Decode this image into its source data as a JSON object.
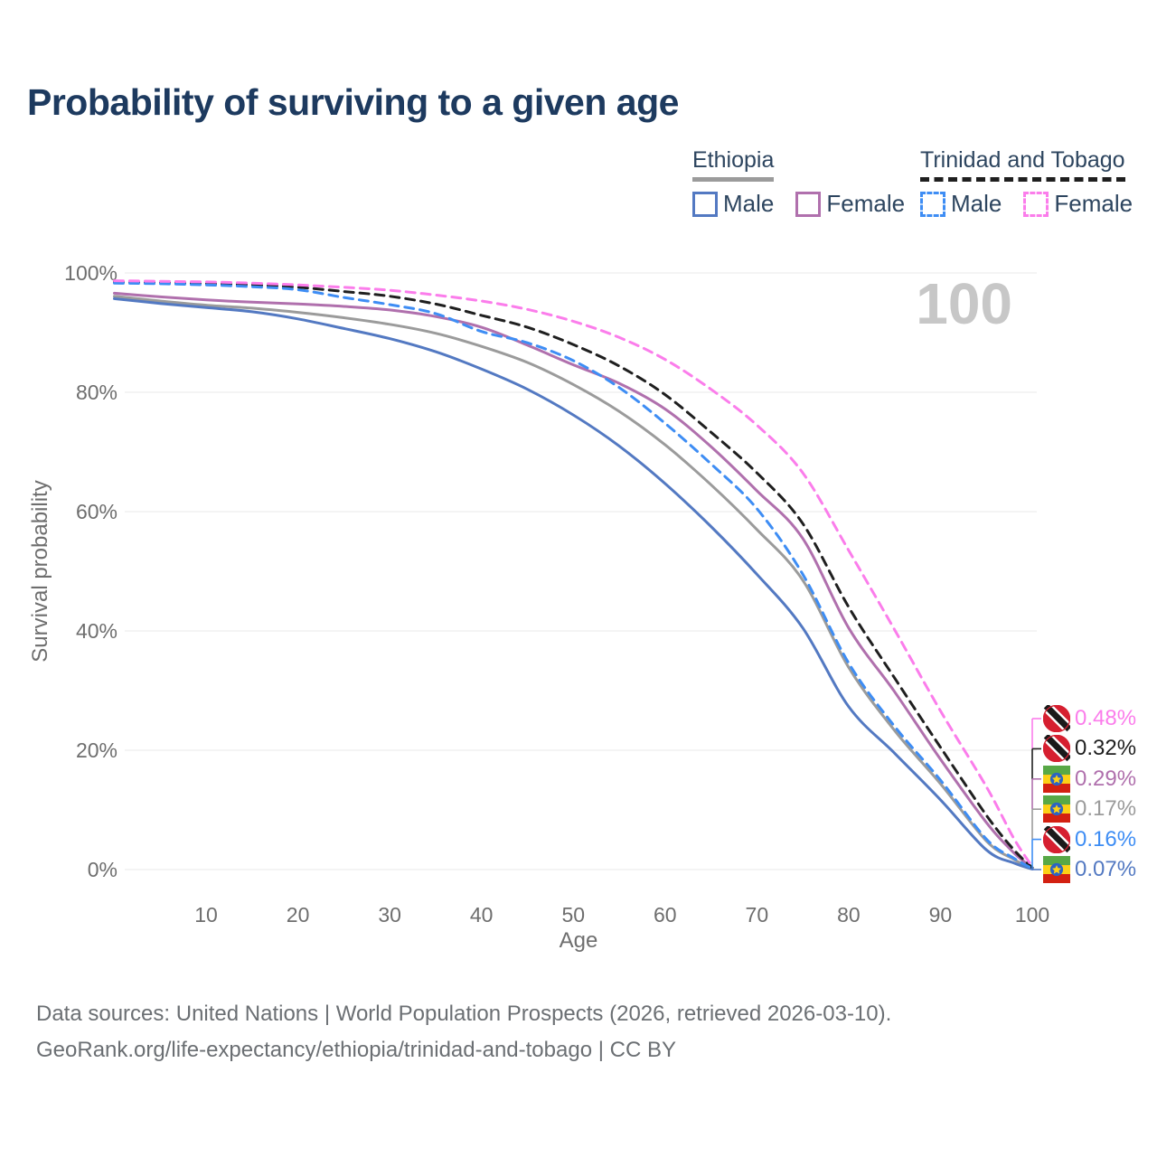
{
  "header": {
    "title": "Probability of surviving to a given age"
  },
  "watermark": "100",
  "legend": {
    "groups": [
      {
        "label": "Ethiopia",
        "line_style": "solid",
        "underline_color": "#9b9b9b",
        "items": [
          {
            "label": "Male",
            "color": "#5379c2"
          },
          {
            "label": "Female",
            "color": "#b070ad"
          }
        ]
      },
      {
        "label": "Trinidad and Tobago",
        "line_style": "dashed",
        "underline_color": "#1f1f1f",
        "items": [
          {
            "label": "Male",
            "color": "#3e8df4"
          },
          {
            "label": "Female",
            "color": "#fb7deb"
          }
        ]
      }
    ]
  },
  "chart_data": {
    "type": "line",
    "title": "Probability of surviving to a given age",
    "xlabel": "Age",
    "ylabel": "Survival probability",
    "xlim": [
      0,
      100
    ],
    "ylim": [
      0,
      100
    ],
    "grid": "horizontal-only",
    "x_ticks": [
      10,
      20,
      30,
      40,
      50,
      60,
      70,
      80,
      90,
      100
    ],
    "y_ticks": [
      0,
      20,
      40,
      60,
      80,
      100
    ],
    "y_tick_suffix": "%",
    "x": [
      0,
      5,
      10,
      15,
      20,
      25,
      30,
      35,
      40,
      45,
      50,
      55,
      60,
      65,
      70,
      75,
      80,
      85,
      90,
      95,
      98,
      100
    ],
    "series": [
      {
        "name": "Ethiopia",
        "country": "ethiopia",
        "color": "#9b9b9b",
        "dash": false,
        "end_label": "0.17%",
        "values": [
          96.1,
          95.3,
          94.6,
          94.1,
          93.4,
          92.5,
          91.4,
          89.9,
          87.7,
          85.0,
          81.3,
          76.8,
          71.2,
          64.5,
          57.0,
          48.5,
          33.9,
          23.3,
          14.4,
          4.8,
          1.7,
          0.17
        ]
      },
      {
        "name": "Ethiopia Male",
        "country": "ethiopia",
        "color": "#5379c2",
        "dash": false,
        "end_label": "0.07%",
        "values": [
          95.7,
          94.9,
          94.2,
          93.5,
          92.3,
          90.7,
          89.0,
          86.8,
          83.9,
          80.5,
          76.2,
          71.0,
          64.7,
          57.5,
          49.5,
          40.5,
          27.3,
          19.5,
          11.7,
          3.3,
          1.1,
          0.07
        ]
      },
      {
        "name": "Ethiopia Female",
        "country": "ethiopia",
        "color": "#b070ad",
        "dash": false,
        "end_label": "0.29%",
        "values": [
          96.6,
          96.0,
          95.5,
          95.1,
          94.8,
          94.4,
          93.8,
          92.7,
          90.9,
          87.9,
          84.6,
          81.5,
          77.2,
          70.9,
          63.5,
          55.5,
          40.5,
          29.8,
          18.5,
          7.9,
          2.8,
          0.29
        ]
      },
      {
        "name": "Trinidad and Tobago",
        "country": "trinidad-and-tobago",
        "color": "#1f1f1f",
        "dash": true,
        "end_label": "0.32%",
        "values": [
          98.5,
          98.4,
          98.2,
          98.0,
          97.6,
          96.9,
          96.1,
          94.8,
          92.9,
          90.9,
          88.0,
          84.4,
          79.6,
          73.3,
          66.5,
          58.0,
          44.0,
          32.1,
          20.5,
          9.1,
          3.3,
          0.32
        ]
      },
      {
        "name": "Trinidad and Tobago Male",
        "country": "trinidad-and-tobago",
        "color": "#3e8df4",
        "dash": true,
        "end_label": "0.16%",
        "values": [
          98.3,
          98.2,
          98.0,
          97.7,
          97.2,
          95.9,
          94.7,
          93.2,
          90.2,
          88.3,
          85.3,
          80.8,
          74.8,
          68.0,
          60.5,
          49.5,
          34.6,
          24.0,
          15.0,
          5.1,
          1.9,
          0.16
        ]
      },
      {
        "name": "Trinidad and Tobago Female",
        "country": "trinidad-and-tobago",
        "color": "#fb7deb",
        "dash": true,
        "end_label": "0.48%",
        "values": [
          98.7,
          98.6,
          98.5,
          98.3,
          98.0,
          97.6,
          97.1,
          96.3,
          95.3,
          93.9,
          91.9,
          89.2,
          85.5,
          80.5,
          74.5,
          66.5,
          53.5,
          40.2,
          26.6,
          13.9,
          5.2,
          0.48
        ]
      }
    ]
  },
  "footer": {
    "line1": "Data sources: United Nations | World Population Prospects (2026, retrieved 2026-03-10).",
    "line2": "GeoRank.org/life-expectancy/ethiopia/trinidad-and-tobago | CC BY"
  }
}
